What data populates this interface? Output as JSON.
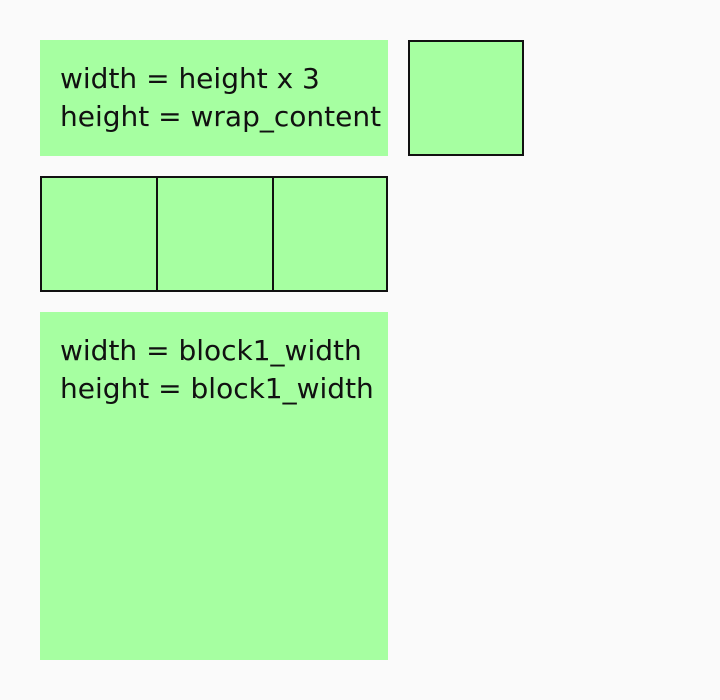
{
  "colors": {
    "page_background": "#fafafa",
    "block_fill": "#a6ffa1",
    "border": "#111111",
    "text": "#111111"
  },
  "block1": {
    "lines": [
      "width = height x 3",
      "height = wrap_content"
    ]
  },
  "block2": {
    "lines": [
      "width = block1_width",
      "height = block1_width"
    ]
  }
}
